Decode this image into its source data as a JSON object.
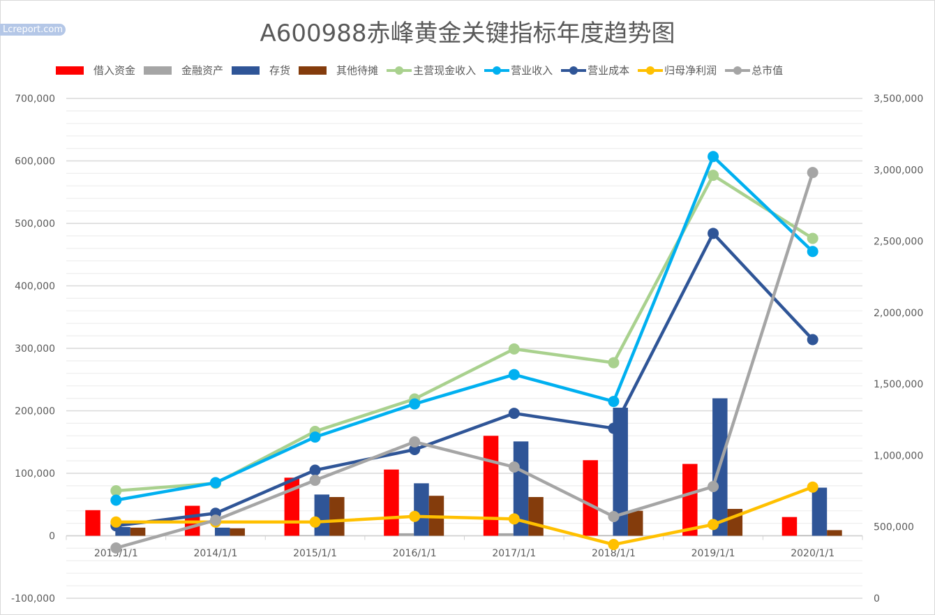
{
  "watermark": "Lcreport.com",
  "chart_data": {
    "type": "bar+line",
    "title": "A600988赤峰黄金关键指标年度趋势图",
    "categories": [
      "2013/1/1",
      "2014/1/1",
      "2015/1/1",
      "2016/1/1",
      "2017/1/1",
      "2018/1/1",
      "2019/1/1",
      "2020/1/1"
    ],
    "y_left": {
      "range": [
        -100000,
        700000
      ],
      "ticks": [
        "-100,000",
        "0",
        "100,000",
        "200,000",
        "300,000",
        "400,000",
        "500,000",
        "600,000",
        "700,000"
      ]
    },
    "y_right": {
      "range": [
        0,
        3500000
      ],
      "ticks": [
        "0",
        "500,000",
        "1,000,000",
        "1,500,000",
        "2,000,000",
        "2,500,000",
        "3,000,000",
        "3,500,000"
      ]
    },
    "legend_position": "top",
    "bars": [
      {
        "name": "借入资金",
        "color": "#ff0000",
        "values": [
          41000,
          48000,
          93000,
          106000,
          160000,
          121000,
          115000,
          30000
        ]
      },
      {
        "name": "金融资产",
        "color": "#a5a5a5",
        "values": [
          0,
          0,
          1000,
          4000,
          4000,
          1000,
          1000,
          1000
        ]
      },
      {
        "name": "存货",
        "color": "#2f5597",
        "values": [
          14000,
          13000,
          66000,
          84000,
          151000,
          205000,
          220000,
          77000
        ]
      },
      {
        "name": "其他待摊",
        "color": "#843c0c",
        "values": [
          13000,
          12000,
          62000,
          64000,
          62000,
          40000,
          43000,
          9000
        ]
      }
    ],
    "lines": [
      {
        "name": "主营现金收入",
        "color": "#a9d18e",
        "axis": "left",
        "values": [
          72000,
          84000,
          167000,
          219000,
          299000,
          277000,
          577000,
          476000
        ]
      },
      {
        "name": "营业收入",
        "color": "#00b0f0",
        "axis": "left",
        "values": [
          57000,
          85000,
          158000,
          211000,
          258000,
          215000,
          607000,
          455000
        ]
      },
      {
        "name": "营业成本",
        "color": "#2f5597",
        "axis": "left",
        "values": [
          16000,
          36000,
          105000,
          138000,
          196000,
          172000,
          484000,
          314000
        ]
      },
      {
        "name": "归母净利润",
        "color": "#ffc000",
        "axis": "left",
        "values": [
          22000,
          22000,
          22000,
          31000,
          27000,
          -14000,
          18000,
          78000
        ]
      },
      {
        "name": "总市值",
        "color": "#a5a5a5",
        "axis": "right",
        "values": [
          352000,
          547000,
          826000,
          1095000,
          919000,
          572000,
          782000,
          2981000
        ]
      }
    ]
  }
}
